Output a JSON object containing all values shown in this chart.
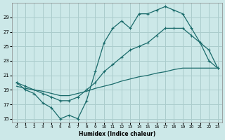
{
  "xlabel": "Humidex (Indice chaleur)",
  "bg_color": "#cce8e8",
  "grid_color": "#aacccc",
  "line_color": "#1a6b6b",
  "curve1_x": [
    0,
    1,
    2,
    3,
    4,
    5,
    6,
    7,
    8,
    9,
    10,
    11,
    12,
    13,
    14,
    15,
    16,
    17,
    18,
    19,
    20,
    21,
    22,
    23
  ],
  "curve1_y": [
    20.0,
    19.0,
    18.5,
    17.2,
    16.5,
    15.0,
    15.5,
    15.0,
    17.5,
    21.5,
    25.5,
    27.5,
    28.5,
    27.5,
    29.5,
    29.5,
    30.0,
    30.5,
    30.0,
    29.5,
    27.5,
    25.5,
    23.0,
    22.0
  ],
  "curve2_x": [
    0,
    1,
    2,
    3,
    4,
    5,
    6,
    7,
    8,
    9,
    10,
    11,
    12,
    13,
    14,
    15,
    16,
    17,
    18,
    19,
    20,
    21,
    22,
    23
  ],
  "curve2_y": [
    20.0,
    19.5,
    19.0,
    18.5,
    18.0,
    17.5,
    17.5,
    18.0,
    19.0,
    20.0,
    21.5,
    22.5,
    23.5,
    24.5,
    25.0,
    25.5,
    26.5,
    27.5,
    27.5,
    27.5,
    26.5,
    25.5,
    24.5,
    22.0
  ],
  "curve3_x": [
    0,
    1,
    2,
    3,
    4,
    5,
    6,
    7,
    8,
    9,
    10,
    11,
    12,
    13,
    14,
    15,
    16,
    17,
    18,
    19,
    20,
    21,
    22,
    23
  ],
  "curve3_y": [
    19.5,
    19.2,
    19.0,
    18.8,
    18.5,
    18.2,
    18.2,
    18.5,
    18.8,
    19.2,
    19.5,
    19.8,
    20.2,
    20.5,
    20.8,
    21.0,
    21.3,
    21.5,
    21.8,
    22.0,
    22.0,
    22.0,
    22.0,
    22.0
  ],
  "ylim": [
    14.5,
    31.0
  ],
  "xlim": [
    -0.5,
    23.5
  ],
  "yticks": [
    15,
    17,
    19,
    21,
    23,
    25,
    27,
    29
  ],
  "xticks": [
    0,
    1,
    2,
    3,
    4,
    5,
    6,
    7,
    8,
    9,
    10,
    11,
    12,
    13,
    14,
    15,
    16,
    17,
    18,
    19,
    20,
    21,
    22,
    23
  ]
}
